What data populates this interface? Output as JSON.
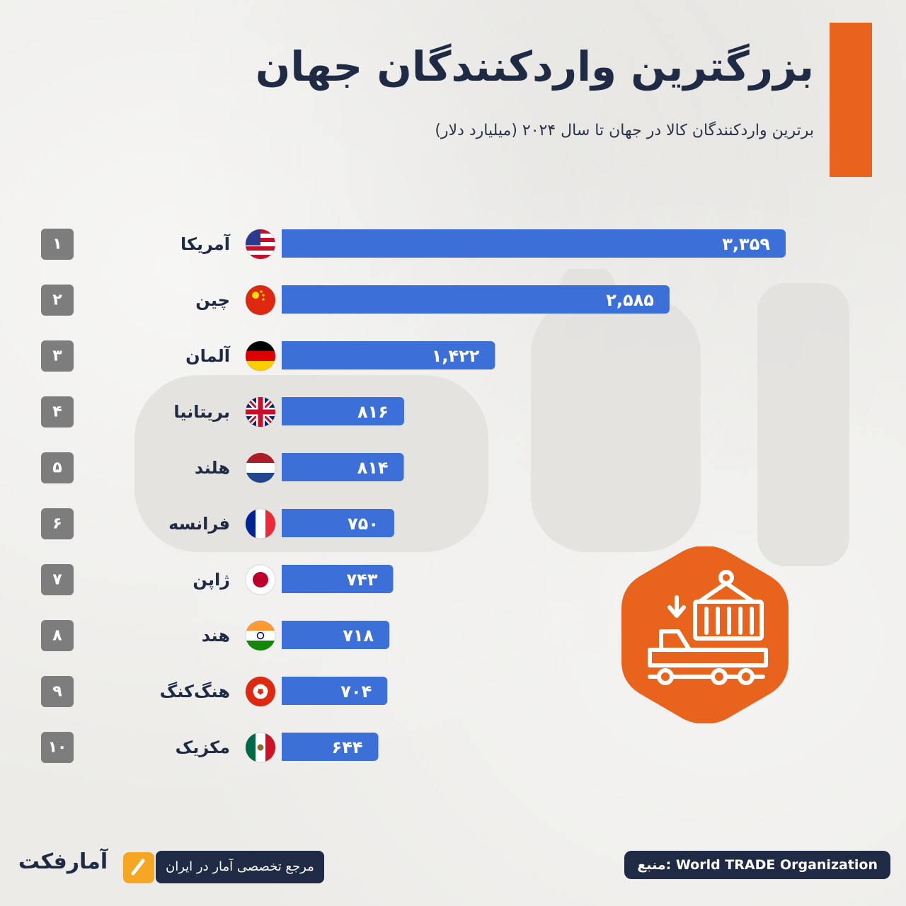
{
  "header": {
    "title": "بزرگترین واردکنندگان جهان",
    "subtitle": "برترین واردکنندگان کالا در جهان تا سال ۲۰۲۴ (میلیارد دلار)"
  },
  "colors": {
    "accent": "#e8641d",
    "bar": "#3d6fd9",
    "rank_box": "#7d7d7d",
    "navy": "#1f2a44"
  },
  "chart_data": {
    "type": "bar",
    "orientation": "horizontal",
    "title": "بزرگترین واردکنندگان جهان",
    "subtitle": "برترین واردکنندگان کالا در جهان تا سال ۲۰۲۴ (میلیارد دلار)",
    "unit": "میلیارد دلار",
    "categories": [
      "آمریکا",
      "چین",
      "آلمان",
      "بریتانیا",
      "هلند",
      "فرانسه",
      "ژاپن",
      "هند",
      "هنگ‌کنگ",
      "مکزیک"
    ],
    "ranks": [
      "۱",
      "۲",
      "۳",
      "۴",
      "۵",
      "۶",
      "۷",
      "۸",
      "۹",
      "۱۰"
    ],
    "values": [
      3359,
      2585,
      1422,
      816,
      814,
      750,
      743,
      718,
      704,
      644
    ],
    "value_labels": [
      "۳,۳۵۹",
      "۲,۵۸۵",
      "۱,۴۲۲",
      "۸۱۶",
      "۸۱۴",
      "۷۵۰",
      "۷۴۳",
      "۷۱۸",
      "۷۰۴",
      "۶۴۴"
    ],
    "flags": [
      "us-flag",
      "cn-flag",
      "de-flag",
      "gb-flag",
      "nl-flag",
      "fr-flag",
      "jp-flag",
      "in-flag",
      "hk-flag",
      "mx-flag"
    ],
    "xlim": [
      0,
      3359
    ],
    "grid": false,
    "legend": "none"
  },
  "brand": {
    "name": "آمارفکت",
    "tagline": "مرجع تخصصی آمار در ایران"
  },
  "footer": {
    "source": "منبع: World TRADE Organization"
  },
  "icons": {
    "truck": "truck-container-icon",
    "watermark": "logo-watermark"
  }
}
